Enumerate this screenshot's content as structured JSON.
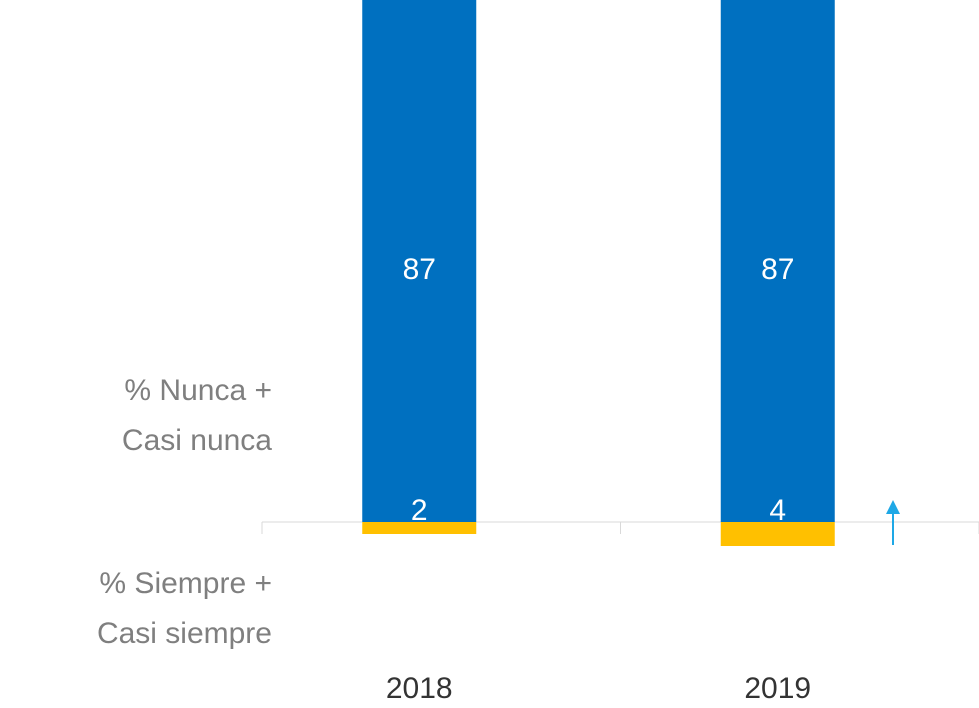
{
  "chart_data": {
    "type": "diverging_bar",
    "categories": [
      "2018",
      "2019"
    ],
    "series": [
      {
        "name": [
          "% Nunca +",
          "Casi nunca"
        ],
        "color": "#0070c0",
        "side": "above",
        "values": [
          87,
          87
        ]
      },
      {
        "name": [
          "% Siempre +",
          "Casi siempre"
        ],
        "color": "#ffc000",
        "side": "below",
        "values": [
          2,
          4
        ]
      }
    ],
    "ylim": [
      -31,
      87
    ]
  }
}
